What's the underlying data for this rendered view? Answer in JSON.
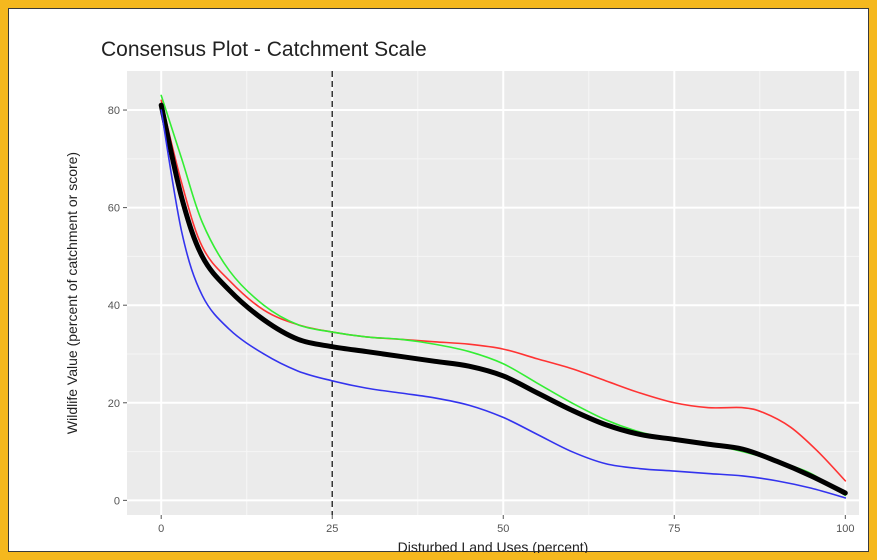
{
  "chart_data": {
    "type": "line",
    "title": "Consensus Plot - Catchment Scale",
    "xlabel": "Disturbed Land Uses (percent)",
    "ylabel": "Wildlife Value (percent of catchment or score)",
    "xlim": [
      -5,
      102
    ],
    "ylim": [
      -3,
      88
    ],
    "x_ticks": [
      0,
      25,
      50,
      75,
      100
    ],
    "y_ticks": [
      0,
      20,
      40,
      60,
      80
    ],
    "x_tick_labels": [
      "0",
      "25",
      "50",
      "75",
      "100"
    ],
    "y_tick_labels": [
      "0",
      "20",
      "40",
      "60",
      "80"
    ],
    "grid": true,
    "background": "#ebebeb",
    "reference_line": {
      "x": 25,
      "style": "dashed",
      "color": "#333333"
    },
    "series": [
      {
        "color": "#ff3333",
        "x": [
          0,
          3,
          6,
          10,
          15,
          20,
          25,
          30,
          35,
          40,
          45,
          50,
          55,
          60,
          65,
          70,
          75,
          80,
          85,
          88,
          92,
          96,
          100
        ],
        "y": [
          82,
          65,
          52,
          45,
          39,
          36,
          34.5,
          33.5,
          33,
          32.5,
          32,
          31,
          29,
          27,
          24.5,
          22,
          20,
          19,
          19,
          18,
          15,
          10,
          4
        ]
      },
      {
        "color": "#33ee33",
        "x": [
          0,
          3,
          6,
          10,
          15,
          20,
          25,
          30,
          35,
          40,
          45,
          50,
          55,
          60,
          65,
          70,
          75,
          80,
          85,
          90,
          95,
          100
        ],
        "y": [
          83,
          70,
          57,
          47,
          40,
          36,
          34.5,
          33.5,
          33,
          32,
          30.5,
          28,
          24,
          20,
          16.5,
          14,
          12.5,
          11.5,
          10,
          8,
          5.5,
          1
        ]
      },
      {
        "color": "#000000",
        "x": [
          0,
          3,
          6,
          10,
          15,
          20,
          25,
          30,
          35,
          40,
          45,
          50,
          55,
          60,
          65,
          70,
          75,
          80,
          85,
          90,
          95,
          100
        ],
        "y": [
          81,
          62,
          50,
          43,
          37,
          33,
          31.5,
          30.5,
          29.5,
          28.5,
          27.5,
          25.5,
          22,
          18.5,
          15.5,
          13.5,
          12.5,
          11.5,
          10.5,
          8,
          5,
          1.5
        ]
      },
      {
        "color": "#3333ee",
        "x": [
          0,
          3,
          6,
          10,
          15,
          20,
          25,
          30,
          35,
          40,
          45,
          50,
          55,
          60,
          65,
          70,
          75,
          80,
          85,
          90,
          95,
          100
        ],
        "y": [
          80,
          55,
          42,
          35,
          30,
          26.5,
          24.5,
          23,
          22,
          21,
          19.5,
          17,
          13.5,
          10,
          7.5,
          6.5,
          6,
          5.5,
          5,
          4,
          2.5,
          0.5
        ]
      }
    ]
  }
}
